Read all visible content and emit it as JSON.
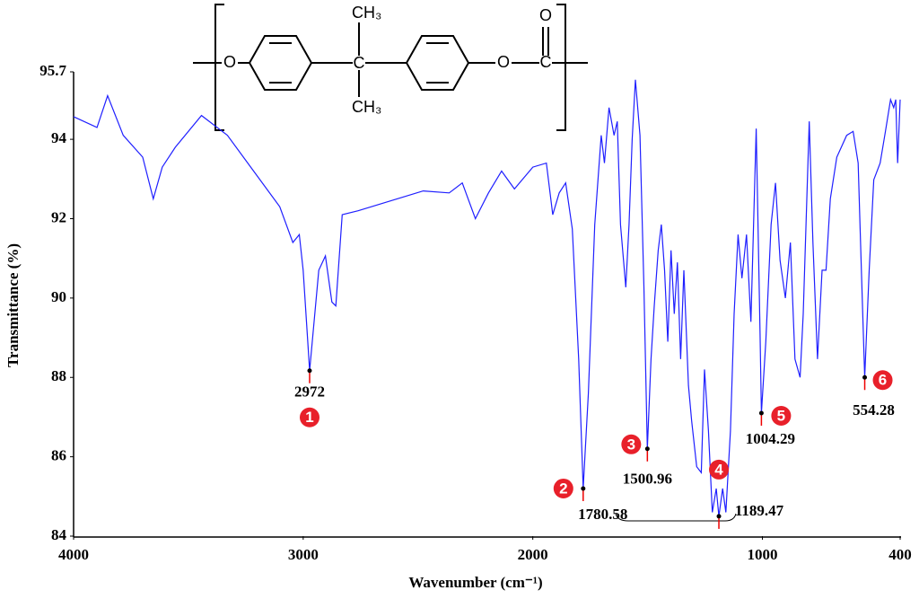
{
  "chart_data": {
    "type": "line",
    "x_label": "Wavenumber (cm⁻¹)",
    "y_label": "Transmittance (%)",
    "xlim": [
      4000,
      400
    ],
    "xticks": [
      4000,
      3000,
      2000,
      1000,
      400
    ],
    "ylim": [
      84,
      95.7
    ],
    "yticks": [
      84,
      86,
      88,
      90,
      92,
      94,
      95.7
    ],
    "color": "#1f1fff",
    "x": [
      4000,
      3898,
      3852,
      3784,
      3699,
      3653,
      3614,
      3557,
      3443,
      3330,
      3216,
      3102,
      3045,
      3017,
      3000,
      2972,
      2932,
      2903,
      2875,
      2858,
      2830,
      2761,
      2591,
      2477,
      2364,
      2307,
      2250,
      2193,
      2136,
      2080,
      2000,
      1941,
      1913,
      1885,
      1857,
      1828,
      1800,
      1780.58,
      1758,
      1730,
      1702,
      1688,
      1668,
      1646,
      1632,
      1618,
      1595,
      1581,
      1567,
      1553,
      1533,
      1516,
      1500.96,
      1485,
      1471,
      1454,
      1440,
      1426,
      1412,
      1398,
      1384,
      1370,
      1356,
      1342,
      1322,
      1308,
      1286,
      1266,
      1252,
      1235,
      1218,
      1201,
      1189.47,
      1173,
      1159,
      1139,
      1123,
      1106,
      1089,
      1069,
      1050,
      1027,
      1010,
      1004.29,
      985,
      962,
      943,
      923,
      900,
      878,
      858,
      836,
      822,
      796,
      780,
      760,
      740,
      723,
      704,
      676,
      633,
      605,
      583,
      569,
      554.28,
      535,
      515,
      487,
      464,
      442,
      428,
      419,
      411,
      400
    ],
    "values": [
      94.57,
      94.3,
      95.1,
      94.1,
      93.55,
      92.5,
      93.3,
      93.8,
      94.6,
      94.1,
      93.2,
      92.3,
      91.4,
      91.6,
      90.7,
      88.17,
      90.7,
      91.06,
      89.9,
      89.8,
      92.1,
      92.2,
      92.5,
      92.7,
      92.65,
      92.9,
      92.0,
      92.65,
      93.2,
      92.75,
      93.3,
      93.4,
      92.1,
      92.65,
      92.9,
      91.74,
      88.46,
      85.2,
      87.6,
      91.85,
      94.1,
      93.4,
      94.8,
      94.1,
      94.45,
      91.85,
      90.27,
      91.85,
      94.0,
      95.5,
      94.1,
      90.27,
      86.2,
      88.46,
      89.8,
      91.2,
      91.85,
      90.7,
      88.9,
      91.2,
      89.6,
      90.9,
      88.46,
      90.7,
      87.8,
      86.9,
      85.75,
      85.6,
      88.2,
      86.65,
      84.6,
      85.2,
      84.5,
      85.2,
      84.6,
      86.65,
      89.6,
      91.6,
      90.5,
      91.6,
      89.4,
      94.27,
      89.1,
      87.1,
      88.9,
      91.85,
      92.9,
      90.95,
      90.0,
      91.4,
      88.46,
      88.0,
      89.6,
      94.45,
      91.4,
      88.46,
      90.7,
      90.7,
      92.5,
      93.55,
      94.1,
      94.2,
      93.4,
      90.7,
      88.0,
      90.7,
      92.98,
      93.4,
      94.2,
      95.0,
      94.8,
      95.0,
      93.4,
      95.0
    ],
    "peaks": {
      "x": [
        2972,
        1780.58,
        1500.96,
        1189.47,
        1004.29,
        554.28
      ],
      "y": [
        88.17,
        85.2,
        86.2,
        84.5,
        87.1,
        88.0
      ],
      "markers": [
        1,
        2,
        3,
        4,
        5,
        6
      ]
    },
    "structure": {
      "left_oxygen": "O",
      "methyl_top": "CH₃",
      "central_carbon": "C",
      "methyl_bottom": "CH₃",
      "ester_oxygen": "O",
      "carbonyl_carbon": "C",
      "carbonyl_oxygen": "O"
    }
  }
}
